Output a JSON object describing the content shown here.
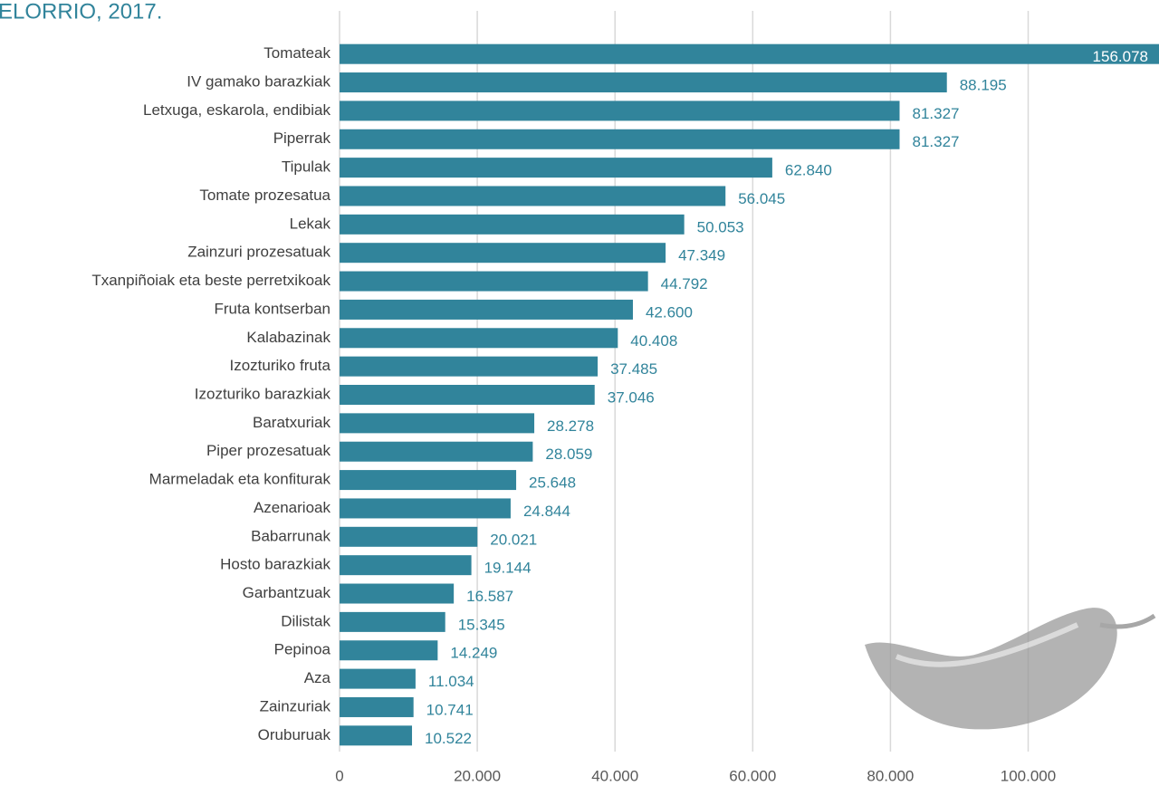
{
  "chart_data": {
    "type": "bar",
    "orientation": "horizontal",
    "title": "ELORRIO, 2017.",
    "categories": [
      "Tomateak",
      "IV gamako barazkiak",
      "Letxuga, eskarola, endibiak",
      "Piperrak",
      "Tipulak",
      "Tomate prozesatua",
      "Lekak",
      "Zainzuri prozesatuak",
      "Txanpiñoiak eta beste perretxikoak",
      "Fruta kontserban",
      "Kalabazinak",
      "Izozturiko fruta",
      "Izozturiko barazkiak",
      "Baratxuriak",
      "Piper prozesatuak",
      "Marmeladak eta konfiturak",
      "Azenarioak",
      "Babarrunak",
      "Hosto barazkiak",
      "Garbantzuak",
      "Dilistak",
      "Pepinoa",
      "Aza",
      "Zainzuriak",
      "Oruburuak"
    ],
    "values": [
      156078,
      88195,
      81327,
      81327,
      62840,
      56045,
      50053,
      47349,
      44792,
      42600,
      40408,
      37485,
      37046,
      28278,
      28059,
      25648,
      24844,
      20021,
      19144,
      16587,
      15345,
      14249,
      11034,
      10741,
      10522
    ],
    "value_labels": [
      "156.078",
      "88.195",
      "81.327",
      "81.327",
      "62.840",
      "56.045",
      "50.053",
      "47.349",
      "44.792",
      "42.600",
      "40.408",
      "37.485",
      "37.046",
      "28.278",
      "28.059",
      "25.648",
      "24.844",
      "20.021",
      "19.144",
      "16.587",
      "15.345",
      "14.249",
      "11.034",
      "10.741",
      "10.522"
    ],
    "color": "#31849b",
    "xlim": [
      0,
      119000
    ],
    "xticks": [
      0,
      {
        "value": 20000,
        "label": "20.000"
      },
      {
        "value": 40000,
        "label": "40.000"
      },
      {
        "value": 60000,
        "label": "60.000"
      },
      {
        "value": 80000,
        "label": "80.000"
      },
      {
        "value": 100000,
        "label": "100.000"
      }
    ],
    "grid": true
  }
}
